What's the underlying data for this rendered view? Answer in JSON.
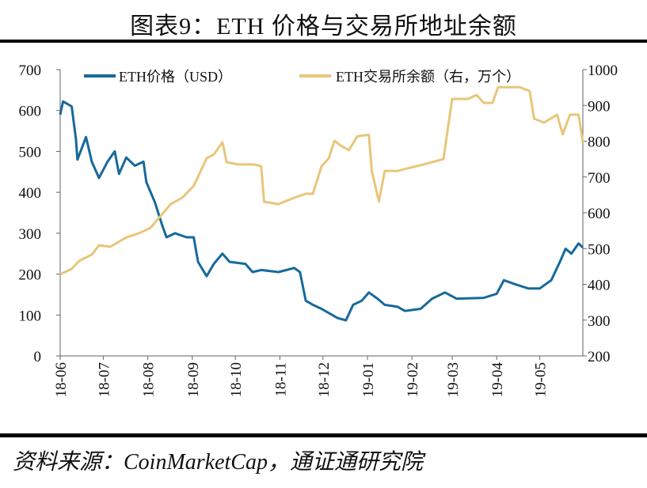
{
  "title": "图表9：ETH 价格与交易所地址余额",
  "source": "资料来源：CoinMarketCap，通证通研究院",
  "chart_data": {
    "type": "line",
    "title": "图表9：ETH 价格与交易所地址余额",
    "x_tick_labels": [
      "18-06",
      "18-07",
      "18-08",
      "18-09",
      "18-10",
      "18-11",
      "18-12",
      "19-01",
      "19-02",
      "19-03",
      "19-04",
      "19-05"
    ],
    "x_tick_dates": [
      "2018-06-01",
      "2018-07-01",
      "2018-08-01",
      "2018-09-01",
      "2018-10-01",
      "2018-11-01",
      "2018-12-01",
      "2019-01-01",
      "2019-02-01",
      "2019-03-01",
      "2019-04-01",
      "2019-05-01"
    ],
    "xlim": [
      "2018-06-01",
      "2019-05-31"
    ],
    "y_left": {
      "lim": [
        0,
        700
      ],
      "ticks": [
        0,
        100,
        200,
        300,
        400,
        500,
        600,
        700
      ]
    },
    "y_right": {
      "lim": [
        200,
        1000
      ],
      "ticks": [
        200,
        300,
        400,
        500,
        600,
        700,
        800,
        900,
        1000
      ]
    },
    "grid": false,
    "legend_position": "top",
    "series": [
      {
        "name": "ETH价格（USD）",
        "axis": "left",
        "color": "#17699B",
        "points": [
          [
            "2018-06-01",
            590
          ],
          [
            "2018-06-03",
            622
          ],
          [
            "2018-06-09",
            610
          ],
          [
            "2018-06-12",
            530
          ],
          [
            "2018-06-13",
            480
          ],
          [
            "2018-06-19",
            535
          ],
          [
            "2018-06-23",
            475
          ],
          [
            "2018-06-28",
            435
          ],
          [
            "2018-07-04",
            475
          ],
          [
            "2018-07-09",
            500
          ],
          [
            "2018-07-12",
            445
          ],
          [
            "2018-07-17",
            485
          ],
          [
            "2018-07-23",
            465
          ],
          [
            "2018-07-29",
            475
          ],
          [
            "2018-07-31",
            425
          ],
          [
            "2018-08-06",
            375
          ],
          [
            "2018-08-11",
            320
          ],
          [
            "2018-08-14",
            290
          ],
          [
            "2018-08-20",
            300
          ],
          [
            "2018-08-28",
            290
          ],
          [
            "2018-09-02",
            290
          ],
          [
            "2018-09-05",
            230
          ],
          [
            "2018-09-11",
            195
          ],
          [
            "2018-09-16",
            225
          ],
          [
            "2018-09-22",
            250
          ],
          [
            "2018-09-27",
            230
          ],
          [
            "2018-10-08",
            225
          ],
          [
            "2018-10-13",
            205
          ],
          [
            "2018-10-19",
            210
          ],
          [
            "2018-10-31",
            205
          ],
          [
            "2018-11-11",
            215
          ],
          [
            "2018-11-15",
            205
          ],
          [
            "2018-11-19",
            135
          ],
          [
            "2018-11-24",
            125
          ],
          [
            "2018-11-30",
            115
          ],
          [
            "2018-12-05",
            105
          ],
          [
            "2018-12-11",
            93
          ],
          [
            "2018-12-17",
            87
          ],
          [
            "2018-12-22",
            125
          ],
          [
            "2018-12-28",
            135
          ],
          [
            "2019-01-02",
            155
          ],
          [
            "2019-01-08",
            140
          ],
          [
            "2019-01-13",
            125
          ],
          [
            "2019-01-22",
            120
          ],
          [
            "2019-01-27",
            110
          ],
          [
            "2019-02-07",
            115
          ],
          [
            "2019-02-15",
            140
          ],
          [
            "2019-02-24",
            155
          ],
          [
            "2019-03-04",
            140
          ],
          [
            "2019-03-23",
            142
          ],
          [
            "2019-04-01",
            152
          ],
          [
            "2019-04-06",
            185
          ],
          [
            "2019-04-14",
            175
          ],
          [
            "2019-04-23",
            165
          ],
          [
            "2019-05-01",
            165
          ],
          [
            "2019-05-09",
            185
          ],
          [
            "2019-05-15",
            230
          ],
          [
            "2019-05-19",
            262
          ],
          [
            "2019-05-23",
            250
          ],
          [
            "2019-05-28",
            275
          ],
          [
            "2019-05-31",
            265
          ]
        ]
      },
      {
        "name": "ETH交易所余额（右，万个）",
        "axis": "right",
        "color": "#E8C67A",
        "points": [
          [
            "2018-06-01",
            428
          ],
          [
            "2018-06-09",
            443
          ],
          [
            "2018-06-14",
            465
          ],
          [
            "2018-06-23",
            483
          ],
          [
            "2018-06-28",
            509
          ],
          [
            "2018-07-06",
            505
          ],
          [
            "2018-07-17",
            531
          ],
          [
            "2018-07-26",
            543
          ],
          [
            "2018-08-03",
            558
          ],
          [
            "2018-08-09",
            587
          ],
          [
            "2018-08-17",
            624
          ],
          [
            "2018-08-25",
            642
          ],
          [
            "2018-09-02",
            675
          ],
          [
            "2018-09-11",
            752
          ],
          [
            "2018-09-16",
            763
          ],
          [
            "2018-09-22",
            797
          ],
          [
            "2018-09-25",
            741
          ],
          [
            "2018-10-03",
            735
          ],
          [
            "2018-10-14",
            735
          ],
          [
            "2018-10-19",
            730
          ],
          [
            "2018-10-21",
            631
          ],
          [
            "2018-10-31",
            624
          ],
          [
            "2018-11-11",
            642
          ],
          [
            "2018-11-19",
            653
          ],
          [
            "2018-11-24",
            653
          ],
          [
            "2018-11-30",
            730
          ],
          [
            "2018-12-05",
            752
          ],
          [
            "2018-12-09",
            801
          ],
          [
            "2018-12-14",
            786
          ],
          [
            "2018-12-19",
            775
          ],
          [
            "2018-12-25",
            814
          ],
          [
            "2019-01-02",
            818
          ],
          [
            "2019-01-04",
            717
          ],
          [
            "2019-01-09",
            631
          ],
          [
            "2019-01-13",
            717
          ],
          [
            "2019-01-22",
            717
          ],
          [
            "2019-02-02",
            728
          ],
          [
            "2019-02-13",
            739
          ],
          [
            "2019-02-23",
            750
          ],
          [
            "2019-02-25",
            808
          ],
          [
            "2019-03-01",
            918
          ],
          [
            "2019-03-12",
            918
          ],
          [
            "2019-03-18",
            929
          ],
          [
            "2019-03-23",
            907
          ],
          [
            "2019-03-29",
            907
          ],
          [
            "2019-04-02",
            951
          ],
          [
            "2019-04-17",
            951
          ],
          [
            "2019-04-24",
            940
          ],
          [
            "2019-04-27",
            863
          ],
          [
            "2019-05-04",
            852
          ],
          [
            "2019-05-13",
            874
          ],
          [
            "2019-05-17",
            819
          ],
          [
            "2019-05-22",
            874
          ],
          [
            "2019-05-28",
            874
          ],
          [
            "2019-05-31",
            797
          ]
        ]
      }
    ]
  }
}
